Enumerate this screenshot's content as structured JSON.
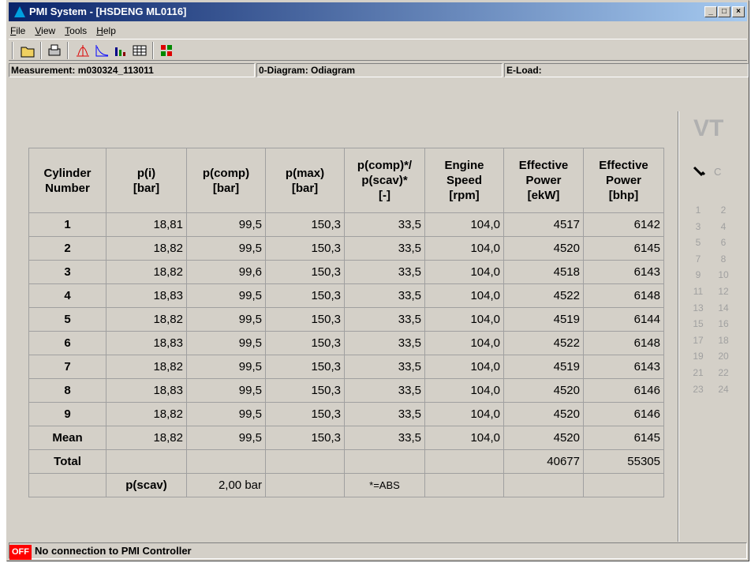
{
  "window": {
    "title": "PMI System - [HSDENG ML0116]"
  },
  "menu": [
    "File",
    "View",
    "Tools",
    "Help"
  ],
  "info": [
    "Measurement: m030324_113011",
    "0-Diagram: Odiagram",
    "E-Load:"
  ],
  "table": {
    "header": [
      [
        "Cylinder",
        "Number"
      ],
      [
        "p(i)",
        "[bar]"
      ],
      [
        "p(comp)",
        "[bar]"
      ],
      [
        "p(max)",
        "[bar]"
      ],
      [
        "p(comp)*/",
        "p(scav)*",
        "[-]"
      ],
      [
        "Engine",
        "Speed",
        "[rpm]"
      ],
      [
        "Effective",
        "Power",
        "[ekW]"
      ],
      [
        "Effective",
        "Power",
        "[bhp]"
      ]
    ],
    "rows": [
      [
        "1",
        "18,81",
        "99,5",
        "150,3",
        "33,5",
        "104,0",
        "4517",
        "6142"
      ],
      [
        "2",
        "18,82",
        "99,5",
        "150,3",
        "33,5",
        "104,0",
        "4520",
        "6145"
      ],
      [
        "3",
        "18,82",
        "99,6",
        "150,3",
        "33,5",
        "104,0",
        "4518",
        "6143"
      ],
      [
        "4",
        "18,83",
        "99,5",
        "150,3",
        "33,5",
        "104,0",
        "4522",
        "6148"
      ],
      [
        "5",
        "18,82",
        "99,5",
        "150,3",
        "33,5",
        "104,0",
        "4519",
        "6144"
      ],
      [
        "6",
        "18,83",
        "99,5",
        "150,3",
        "33,5",
        "104,0",
        "4522",
        "6148"
      ],
      [
        "7",
        "18,82",
        "99,5",
        "150,3",
        "33,5",
        "104,0",
        "4519",
        "6143"
      ],
      [
        "8",
        "18,83",
        "99,5",
        "150,3",
        "33,5",
        "104,0",
        "4520",
        "6146"
      ],
      [
        "9",
        "18,82",
        "99,5",
        "150,3",
        "33,5",
        "104,0",
        "4520",
        "6146"
      ],
      [
        "Mean",
        "18,82",
        "99,5",
        "150,3",
        "33,5",
        "104,0",
        "4520",
        "6145"
      ],
      [
        "Total",
        null,
        null,
        null,
        null,
        null,
        "40677",
        "55305"
      ],
      [
        null,
        "p(scav)",
        "2,00 bar",
        null,
        "*=ABS",
        null,
        null,
        null
      ]
    ]
  },
  "side": {
    "logo": "VT",
    "letter": "C",
    "numbers": [
      "1",
      "2",
      "3",
      "4",
      "5",
      "6",
      "7",
      "8",
      "9",
      "10",
      "11",
      "12",
      "13",
      "14",
      "15",
      "16",
      "17",
      "18",
      "19",
      "20",
      "21",
      "22",
      "23",
      "24"
    ]
  },
  "status": {
    "badge": "OFF",
    "text": "No connection to PMI Controller"
  }
}
